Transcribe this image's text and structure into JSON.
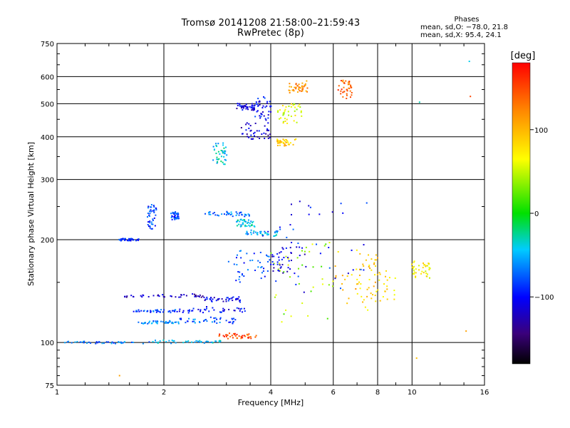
{
  "header": {
    "title_line1": "Tromsø 20141208 21:58:00–21:59:43",
    "title_line2": "RwPretec (8p)"
  },
  "phase_box": {
    "title": "Phases",
    "line_o": "mean, sd,O: −78.0, 21.8",
    "line_x": "mean, sd,X:  95.4, 24.1"
  },
  "colorbar": {
    "label": "[deg]",
    "range": [
      -180,
      180
    ],
    "ticks": [
      100,
      0,
      -100
    ],
    "tick_labels": [
      "100",
      "0",
      "−100"
    ],
    "colormap": "rainbow-black-to-red"
  },
  "chart_data": {
    "type": "scatter",
    "title": "Tromsø 20141208 21:58:00–21:59:43 RwPretec (8p)",
    "xlabel": "Frequency [MHz]",
    "ylabel": "Stationary phase Virtual Height [km]",
    "x_scale": "log",
    "y_scale": "log",
    "xlim": [
      1,
      16
    ],
    "ylim": [
      75,
      750
    ],
    "x_ticks": [
      1,
      2,
      4,
      6,
      8,
      10,
      16
    ],
    "x_tick_labels": [
      "1",
      "2",
      "4",
      "6",
      "8",
      "10",
      "16"
    ],
    "y_ticks": [
      75,
      100,
      200,
      300,
      400,
      500,
      600,
      750
    ],
    "y_tick_labels": [
      "75",
      "100",
      "200",
      "300",
      "400",
      "500",
      "600",
      "750"
    ],
    "grid_x": [
      1,
      2,
      4,
      6,
      8,
      10
    ],
    "grid_y": [
      100,
      200,
      300,
      400,
      500,
      600
    ],
    "grid": true,
    "color_variable": "phase [deg]",
    "series": [
      {
        "f": [
          1.0,
          1.85
        ],
        "h": [
          100,
          100
        ],
        "phase": -70
      },
      {
        "f": [
          1.85,
          2.9
        ],
        "h": [
          100,
          101
        ],
        "phase": -45
      },
      {
        "f": [
          2.85,
          3.65
        ],
        "h": [
          103,
          106
        ],
        "phase": 150
      },
      {
        "f": [
          1.55,
          2.6
        ],
        "h": [
          138,
          136
        ],
        "phase": -120
      },
      {
        "f": [
          2.6,
          3.3
        ],
        "h": [
          136,
          132
        ],
        "phase": -105
      },
      {
        "f": [
          1.65,
          2.2
        ],
        "h": [
          124,
          123
        ],
        "phase": -80
      },
      {
        "f": [
          2.2,
          3.4
        ],
        "h": [
          123,
          127
        ],
        "phase": -100
      },
      {
        "f": [
          1.7,
          2.2
        ],
        "h": [
          115,
          114
        ],
        "phase": -60
      },
      {
        "f": [
          2.2,
          3.2
        ],
        "h": [
          114,
          118
        ],
        "phase": -75
      },
      {
        "f": [
          1.5,
          1.7
        ],
        "h": [
          200,
          200
        ],
        "phase": -90
      },
      {
        "f": [
          1.8,
          1.9
        ],
        "h": [
          215,
          255
        ],
        "phase": -85
      },
      {
        "f": [
          2.1,
          2.2
        ],
        "h": [
          230,
          240
        ],
        "phase": -80
      },
      {
        "f": [
          2.6,
          3.5
        ],
        "h": [
          235,
          240
        ],
        "phase": -70
      },
      {
        "f": [
          3.4,
          4.2
        ],
        "h": [
          205,
          212
        ],
        "phase": -50
      },
      {
        "f": [
          3.2,
          3.6
        ],
        "h": [
          218,
          228
        ],
        "phase": -40
      },
      {
        "f": [
          2.75,
          3.0
        ],
        "h": [
          330,
          385
        ],
        "phase": -40
      },
      {
        "f": [
          3.3,
          4.0
        ],
        "h": [
          390,
          440
        ],
        "phase": -115
      },
      {
        "f": [
          3.6,
          4.0
        ],
        "h": [
          450,
          520
        ],
        "phase": -100
      },
      {
        "f": [
          3.2,
          3.6
        ],
        "h": [
          480,
          500
        ],
        "phase": -110
      },
      {
        "f": [
          4.15,
          4.7
        ],
        "h": [
          378,
          392
        ],
        "phase": 90
      },
      {
        "f": [
          4.2,
          4.9
        ],
        "h": [
          440,
          500
        ],
        "phase": 60
      },
      {
        "f": [
          4.5,
          5.1
        ],
        "h": [
          540,
          580
        ],
        "phase": 120
      },
      {
        "f": [
          6.2,
          6.8
        ],
        "h": [
          520,
          590
        ],
        "phase": 140
      },
      {
        "f": [
          4.0,
          6.0
        ],
        "h": [
          115,
          200
        ],
        "phase": 40
      },
      {
        "f": [
          6.0,
          8.0
        ],
        "h": [
          130,
          185
        ],
        "phase": 95
      },
      {
        "f": [
          7.0,
          9.0
        ],
        "h": [
          125,
          175
        ],
        "phase": 80
      },
      {
        "f": [
          10.0,
          11.3
        ],
        "h": [
          155,
          172
        ],
        "phase": 70
      },
      {
        "f": [
          3.8,
          7.5
        ],
        "h": [
          140,
          260
        ],
        "phase": -95
      },
      {
        "f": [
          4.0,
          5.0
        ],
        "h": [
          160,
          190
        ],
        "phase": -110
      },
      {
        "f": [
          3.0,
          4.0
        ],
        "h": [
          150,
          185
        ],
        "phase": -80
      }
    ],
    "isolated_points": [
      {
        "f": 14.5,
        "h": 665,
        "phase": -40
      },
      {
        "f": 14.6,
        "h": 525,
        "phase": 150
      },
      {
        "f": 10.5,
        "h": 505,
        "phase": -30
      },
      {
        "f": 14.2,
        "h": 108,
        "phase": 110
      },
      {
        "f": 10.3,
        "h": 90,
        "phase": 95
      },
      {
        "f": 1.5,
        "h": 80,
        "phase": 110
      }
    ]
  }
}
